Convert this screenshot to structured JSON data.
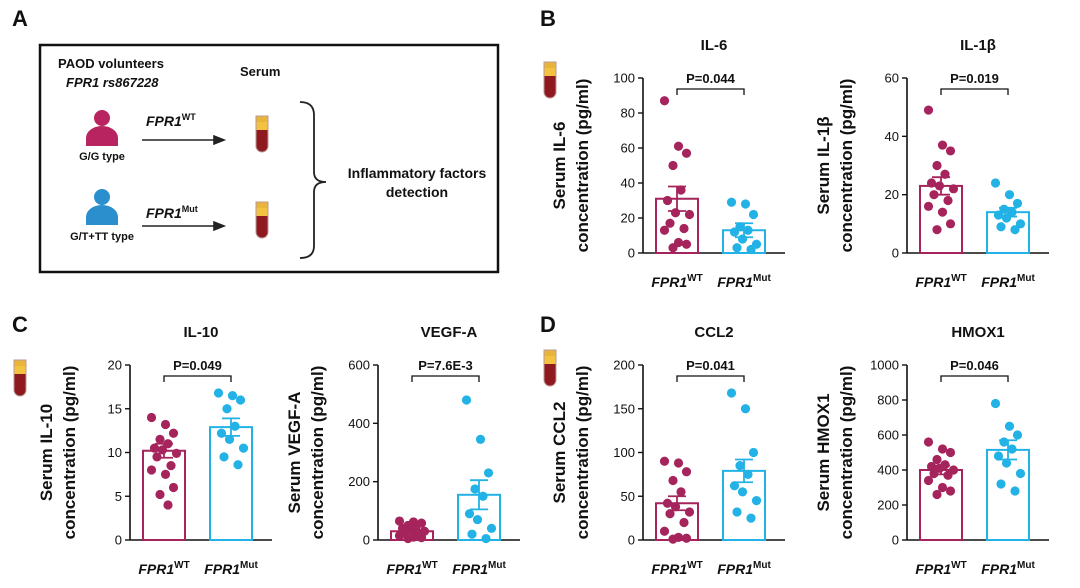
{
  "panel_labels": [
    "A",
    "B",
    "C",
    "D"
  ],
  "panel_a": {
    "title": "PAOD volunteers",
    "subtitle": "FPR1 rs867228",
    "serum": "Serum",
    "groups": [
      {
        "genotype": "G/G type",
        "gene": "FPR1",
        "allele": "WT"
      },
      {
        "genotype": "G/T+TT type",
        "gene": "FPR1",
        "allele": "Mut"
      }
    ],
    "outcome": [
      "Inflammatory factors",
      "detection"
    ]
  },
  "chart_data": [
    {
      "type": "bar",
      "title": "IL-6",
      "ylabel": [
        "Serum IL-6",
        "concentration (pg/ml)"
      ],
      "categories": [
        "FPR1",
        "FPR1"
      ],
      "category_superscripts": [
        "WT",
        "Mut"
      ],
      "values": [
        31,
        13
      ],
      "errors": [
        7,
        4
      ],
      "points": [
        [
          87,
          61,
          57,
          50,
          36,
          30,
          23,
          22,
          17,
          14,
          13,
          6,
          5,
          3
        ],
        [
          29,
          28,
          22,
          15,
          13,
          12,
          8,
          5,
          3,
          2
        ]
      ],
      "colors": [
        "#a6245c",
        "#22b2e6"
      ],
      "annotation": "P=0.044",
      "ylim": [
        0,
        100
      ],
      "yticks": [
        0,
        20,
        40,
        60,
        80,
        100
      ]
    },
    {
      "type": "bar",
      "title": "IL-1β",
      "ylabel": [
        "Serum IL-1β",
        "concentration (pg/ml)"
      ],
      "categories": [
        "FPR1",
        "FPR1"
      ],
      "category_superscripts": [
        "WT",
        "Mut"
      ],
      "values": [
        23,
        14
      ],
      "errors": [
        3,
        1.5
      ],
      "points": [
        [
          49,
          37,
          35,
          30,
          27,
          24,
          23,
          22,
          20,
          18,
          16,
          14,
          10,
          8
        ],
        [
          24,
          20,
          17,
          15,
          14,
          13,
          12,
          10,
          9,
          8
        ]
      ],
      "colors": [
        "#a6245c",
        "#22b2e6"
      ],
      "annotation": "P=0.019",
      "ylim": [
        0,
        60
      ],
      "yticks": [
        0,
        20,
        40,
        60
      ]
    },
    {
      "type": "bar",
      "title": "IL-10",
      "ylabel": [
        "Serum IL-10",
        "concentration (pg/ml)"
      ],
      "categories": [
        "FPR1",
        "FPR1"
      ],
      "category_superscripts": [
        "WT",
        "Mut"
      ],
      "values": [
        10.2,
        12.9
      ],
      "errors": [
        0.8,
        1.0
      ],
      "points": [
        [
          14,
          13.2,
          12.2,
          11.5,
          11,
          10.5,
          10.3,
          9.9,
          9.5,
          8.5,
          8,
          7.5,
          6,
          5.2,
          4
        ],
        [
          16.8,
          16.5,
          16,
          15,
          13,
          12.2,
          11.5,
          10.5,
          9.5,
          8.6
        ]
      ],
      "colors": [
        "#a6245c",
        "#22b2e6"
      ],
      "annotation": "P=0.049",
      "ylim": [
        0,
        20
      ],
      "yticks": [
        0,
        5,
        10,
        15,
        20
      ]
    },
    {
      "type": "bar",
      "title": "VEGF-A",
      "ylabel": [
        "Serum VEGF-A",
        "concentration (pg/ml)"
      ],
      "categories": [
        "FPR1",
        "FPR1"
      ],
      "category_superscripts": [
        "WT",
        "Mut"
      ],
      "values": [
        30,
        155
      ],
      "errors": [
        5,
        50
      ],
      "points": [
        [
          65,
          62,
          58,
          50,
          45,
          40,
          35,
          30,
          25,
          20,
          15,
          10,
          8,
          5
        ],
        [
          480,
          345,
          230,
          175,
          150,
          90,
          70,
          40,
          20,
          5
        ]
      ],
      "colors": [
        "#a6245c",
        "#22b2e6"
      ],
      "annotation": "P=7.6E-3",
      "ylim": [
        0,
        600
      ],
      "yticks": [
        0,
        200,
        400,
        600
      ]
    },
    {
      "type": "bar",
      "title": "CCL2",
      "ylabel": [
        "Serum CCL2",
        "concentration (pg/ml)"
      ],
      "categories": [
        "FPR1",
        "FPR1"
      ],
      "category_superscripts": [
        "WT",
        "Mut"
      ],
      "values": [
        42,
        79
      ],
      "errors": [
        8,
        13
      ],
      "points": [
        [
          90,
          88,
          78,
          68,
          55,
          42,
          38,
          32,
          30,
          20,
          10,
          3,
          2,
          1
        ],
        [
          168,
          150,
          100,
          85,
          75,
          62,
          55,
          45,
          32,
          25
        ]
      ],
      "colors": [
        "#a6245c",
        "#22b2e6"
      ],
      "annotation": "P=0.041",
      "ylim": [
        0,
        200
      ],
      "yticks": [
        0,
        50,
        100,
        150,
        200
      ]
    },
    {
      "type": "bar",
      "title": "HMOX1",
      "ylabel": [
        "Serum HMOX1",
        "concentration (pg/ml)"
      ],
      "categories": [
        "FPR1",
        "FPR1"
      ],
      "category_superscripts": [
        "WT",
        "Mut"
      ],
      "values": [
        400,
        515
      ],
      "errors": [
        25,
        55
      ],
      "points": [
        [
          560,
          520,
          500,
          460,
          430,
          420,
          410,
          400,
          380,
          370,
          340,
          300,
          280,
          260
        ],
        [
          780,
          650,
          600,
          560,
          520,
          480,
          440,
          380,
          320,
          280
        ]
      ],
      "colors": [
        "#a6245c",
        "#22b2e6"
      ],
      "annotation": "P=0.046",
      "ylim": [
        0,
        1000
      ],
      "yticks": [
        0,
        200,
        400,
        600,
        800,
        1000
      ]
    }
  ]
}
